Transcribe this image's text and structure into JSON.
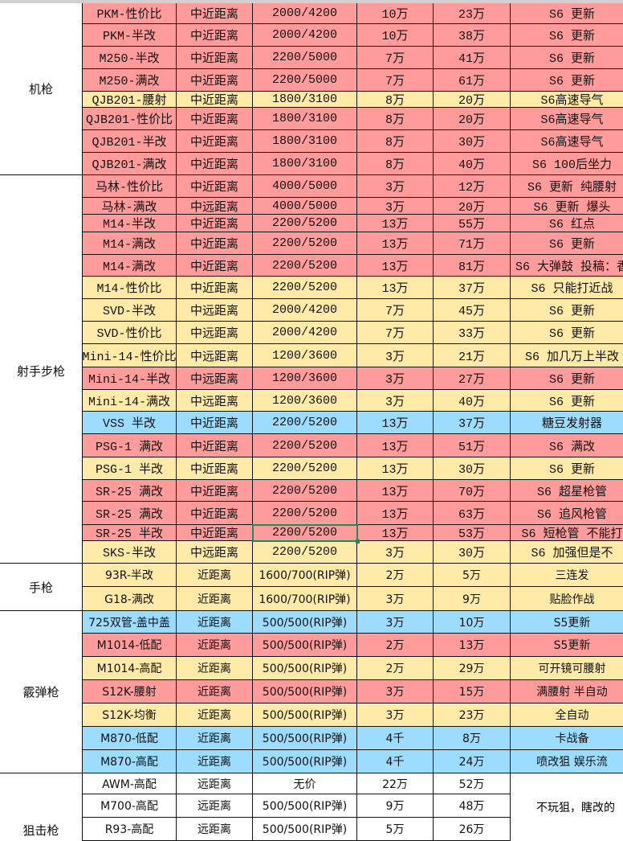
{
  "colors": {
    "red": "#ff9b9b",
    "yellow": "#ffeaa8",
    "blue": "#9bdcff",
    "white": "#ffffff",
    "selection": "#1e8a5a"
  },
  "groups": [
    {
      "label": "机枪",
      "rows": [
        [
          "PKM-性价比",
          "中近距离",
          "2000/4200",
          "10万",
          "23万",
          "S6 更新",
          "red"
        ],
        [
          "PKM-半改",
          "中近距离",
          "2000/4200",
          "10万",
          "38万",
          "S6 更新",
          "red"
        ],
        [
          "M250-半改",
          "中近距离",
          "2200/5000",
          "7万",
          "41万",
          "S6 更新",
          "red"
        ],
        [
          "M250-满改",
          "中近距离",
          "2200/5000",
          "7万",
          "61万",
          "S6 更新",
          "red"
        ],
        [
          "QJB201-腰射",
          "中近距离",
          "1800/3100",
          "8万",
          "20万",
          "S6高速导气",
          "yellow"
        ],
        [
          "QJB201-性价比",
          "中近距离",
          "1800/3100",
          "8万",
          "20万",
          "S6高速导气",
          "red"
        ],
        [
          "QJB201-半改",
          "中近距离",
          "1800/3100",
          "8万",
          "30万",
          "S6高速导气",
          "red"
        ],
        [
          "QJB201-满改",
          "中近距离",
          "1800/3100",
          "8万",
          "40万",
          "S6 100后坐力",
          "red"
        ]
      ]
    },
    {
      "label": "射手步枪",
      "rows": [
        [
          "马林-性价比",
          "中近距离",
          "4000/5000",
          "3万",
          "12万",
          "S6 更新 纯腰射",
          "red"
        ],
        [
          "马林-满改",
          "中远距离",
          "4000/5000",
          "3万",
          "20万",
          "S6 更新 爆头",
          "red"
        ],
        [
          "M14-半改",
          "中近距离",
          "2200/5200",
          "13万",
          "55万",
          "S6 红点",
          "red"
        ],
        [
          "M14-满改",
          "中近距离",
          "2200/5200",
          "13万",
          "71万",
          "S6 更新",
          "red"
        ],
        [
          "M14-满改",
          "中近距离",
          "2200/5200",
          "13万",
          "81万",
          "S6 大弹鼓  投稿：香",
          "red"
        ],
        [
          "M14-性价比",
          "中近距离",
          "2200/5200",
          "13万",
          "37万",
          "S6 只能打近战",
          "yellow"
        ],
        [
          "SVD-半改",
          "中远距离",
          "2000/4200",
          "7万",
          "45万",
          "S6 更新",
          "yellow"
        ],
        [
          "SVD-性价比",
          "中远距离",
          "2000/4200",
          "7万",
          "33万",
          "S6 更新",
          "yellow"
        ],
        [
          "Mini-14-性价比",
          "中远距离",
          "1200/3600",
          "3万",
          "21万",
          "S6 加几万上半改",
          "yellow"
        ],
        [
          "Mini-14-半改",
          "中远距离",
          "1200/3600",
          "3万",
          "27万",
          "S6 更新",
          "red"
        ],
        [
          "Mini-14-满改",
          "中远距离",
          "1200/3600",
          "3万",
          "40万",
          "S6 更新",
          "yellow"
        ],
        [
          "VSS 半改",
          "中近距离",
          "2200/5200",
          "13万",
          "37万",
          "糖豆发射器",
          "blue"
        ],
        [
          "PSG-1 满改",
          "中近距离",
          "2200/5200",
          "13万",
          "51万",
          "S6 满改",
          "red"
        ],
        [
          "PSG-1 半改",
          "中近距离",
          "2200/5200",
          "13万",
          "30万",
          "S6 更新",
          "yellow"
        ],
        [
          "SR-25 满改",
          "中近距离",
          "2200/5200",
          "13万",
          "70万",
          "S6 超星枪管",
          "red"
        ],
        [
          "SR-25 满改",
          "中近距离",
          "2200/5200",
          "13万",
          "63万",
          "S6 追风枪管",
          "red"
        ],
        [
          "SR-25 半改",
          "中近距离",
          "2200/5200",
          "13万",
          "53万",
          "S6 短枪管 不能打",
          "red"
        ],
        [
          "SKS-半改",
          "中远距离",
          "2200/5200",
          "3万",
          "30万",
          "S6 加强但是不",
          "yellow"
        ]
      ]
    },
    {
      "label": "手枪",
      "rows": [
        [
          "93R-半改",
          "近距离",
          "1600/700(RIP弹)",
          "2万",
          "5万",
          "三连发",
          "yellow"
        ],
        [
          "G18-满改",
          "近距离",
          "1600/700(RIP弹)",
          "3万",
          "9万",
          "贴脸作战",
          "yellow"
        ]
      ]
    },
    {
      "label": "霰弹枪",
      "rows": [
        [
          "725双管-盖中盖",
          "近距离",
          "500/500(RIP弹)",
          "3万",
          "10万",
          "S5更新",
          "blue"
        ],
        [
          "M1014-低配",
          "近距离",
          "500/500(RIP弹)",
          "2万",
          "13万",
          "S5更新",
          "red"
        ],
        [
          "M1014-高配",
          "近距离",
          "500/500(RIP弹)",
          "2万",
          "29万",
          "可开镜可腰射",
          "yellow"
        ],
        [
          "S12K-腰射",
          "近距离",
          "500/500(RIP弹)",
          "3万",
          "15万",
          "满腰射 半自动",
          "red"
        ],
        [
          "S12K-均衡",
          "近距离",
          "500/500(RIP弹)",
          "3万",
          "23万",
          "全自动",
          "yellow"
        ],
        [
          "M870-低配",
          "近距离",
          "500/500(RIP弹)",
          "4千",
          "8万",
          "卡战备",
          "blue"
        ],
        [
          "M870-高配",
          "近距离",
          "500/500(RIP弹)",
          "4千",
          "24万",
          "喷改狙 娱乐流",
          "blue"
        ]
      ]
    },
    {
      "label": "狙击枪",
      "merged_note": "不玩狙，瞎改的",
      "rows": [
        [
          "AWM-高配",
          "远距离",
          "无价",
          "22万",
          "52万",
          "",
          "white"
        ],
        [
          "M700-高配",
          "远距离",
          "500/500(RIP弹)",
          "9万",
          "48万",
          "",
          "white"
        ],
        [
          "R93-高配",
          "远距离",
          "500/500(RIP弹)",
          "5万",
          "26万",
          "",
          "white"
        ]
      ]
    }
  ]
}
